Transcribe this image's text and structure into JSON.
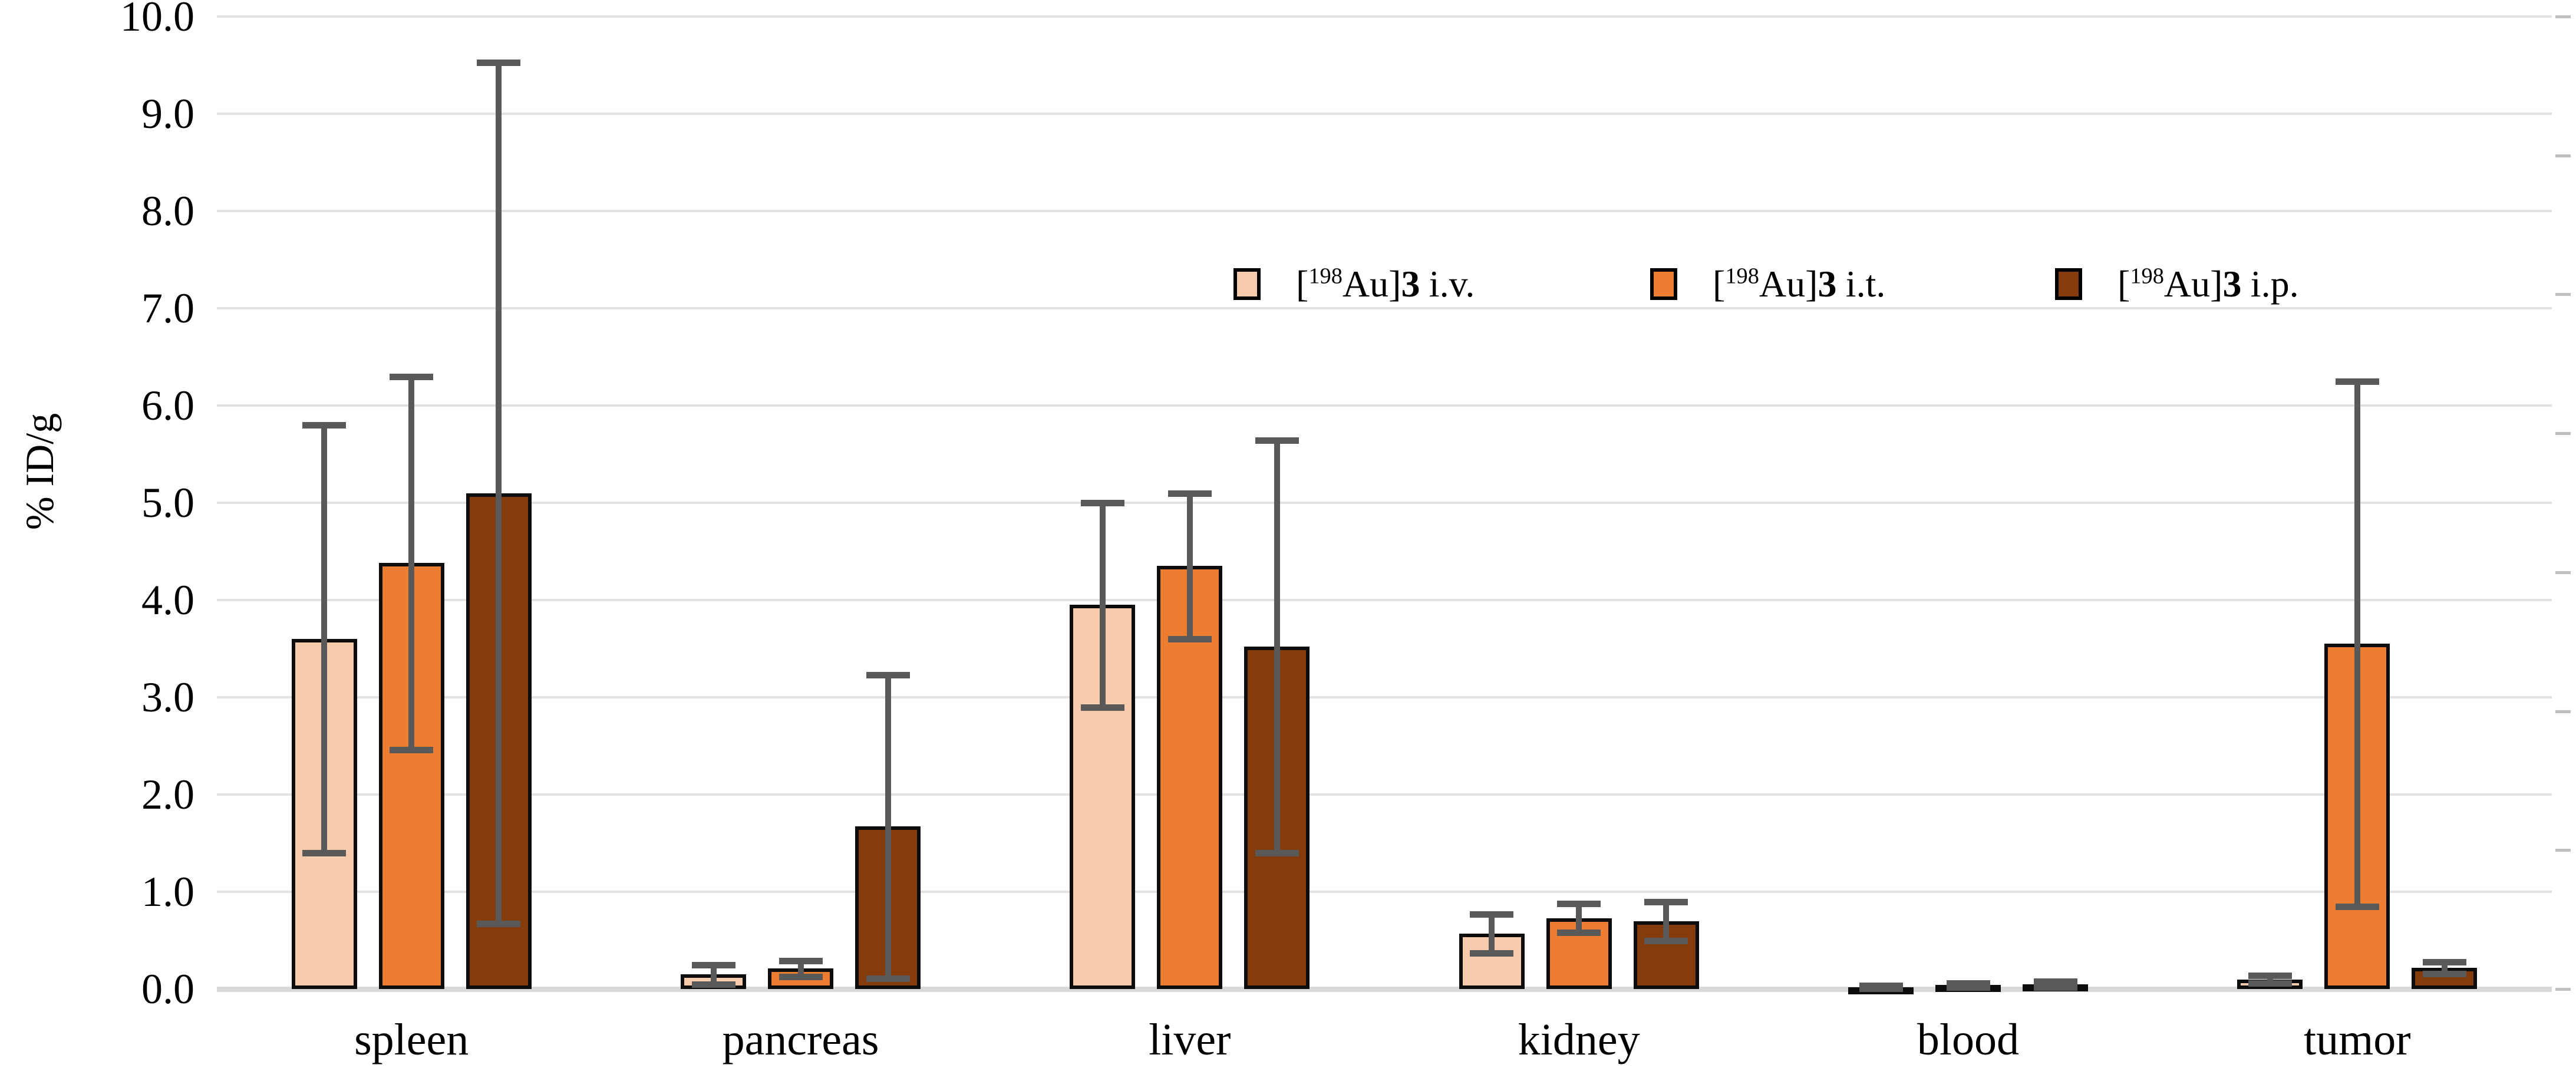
{
  "chart_data": {
    "type": "bar",
    "title": "",
    "ylabel": "% ID/g",
    "xlabel": "",
    "ylim": [
      0.0,
      10.0
    ],
    "ytick_step": 1.0,
    "ytick_format_decimals": 1,
    "grid": true,
    "right_minor_tick_count": 8,
    "legend_position": "inside upper right",
    "categories": [
      "spleen",
      "pancreas",
      "liver",
      "kidney",
      "blood",
      "tumor"
    ],
    "series": [
      {
        "name": "[198Au]3 i.v.",
        "legend": {
          "prefix": "[",
          "sup": "198",
          "mid": "Au]",
          "bold": "3",
          "suffix": "i.v."
        },
        "color": "#F8CBAD",
        "values": [
          3.6,
          0.15,
          3.95,
          0.57,
          0.02,
          0.1
        ],
        "errors": [
          2.2,
          0.1,
          1.05,
          0.2,
          0.015,
          0.04
        ]
      },
      {
        "name": "[198Au]3 i.t.",
        "legend": {
          "prefix": "[",
          "sup": "198",
          "mid": "Au]",
          "bold": "3",
          "suffix": "i.t."
        },
        "color": "#ED7D31",
        "values": [
          4.38,
          0.21,
          4.35,
          0.73,
          0.04,
          3.55
        ],
        "errors": [
          1.92,
          0.08,
          0.75,
          0.15,
          0.02,
          2.7
        ]
      },
      {
        "name": "[198Au]3 i.p.",
        "legend": {
          "prefix": "[",
          "sup": "198",
          "mid": "Au]",
          "bold": "3",
          "suffix": "i.p."
        },
        "color": "#843C0C",
        "values": [
          5.1,
          1.67,
          3.52,
          0.7,
          0.05,
          0.22
        ],
        "errors": [
          4.43,
          1.56,
          2.12,
          0.2,
          0.03,
          0.06
        ]
      }
    ],
    "style": {
      "bar_border_color": "#0D0D0D",
      "error_bar_color": "#595959",
      "gridline_color": "#E2E2E2",
      "axis_line_color": "#D9D9D9",
      "right_tick_color": "#BFBFBF",
      "background": "#FFFFFF",
      "text_color": "#000000"
    }
  }
}
